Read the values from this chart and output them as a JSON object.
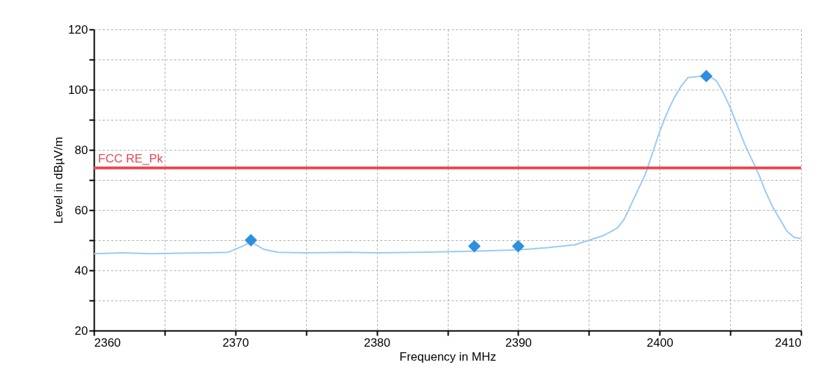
{
  "chart_data": {
    "type": "line",
    "xlabel": "Frequency in MHz",
    "ylabel": "Level in dBµV/m",
    "xlim": [
      2360,
      2410
    ],
    "xticks": [
      2360,
      {
        "value": 2365,
        "label": null
      },
      2370,
      {
        "value": 2375,
        "label": null
      },
      2380,
      {
        "value": 2385,
        "label": null
      },
      2390,
      {
        "value": 2395,
        "label": null
      },
      2400,
      {
        "value": 2405,
        "label": null
      },
      2410
    ],
    "ylim": [
      20,
      120
    ],
    "yticks": [
      20,
      {
        "value": 30,
        "label": null
      },
      40,
      {
        "value": 50,
        "label": null
      },
      60,
      {
        "value": 70,
        "label": null
      },
      80,
      {
        "value": 90,
        "label": null
      },
      100,
      {
        "value": 110,
        "label": null
      },
      120
    ],
    "grid": true,
    "line_style": "solid",
    "series": [
      {
        "type": "line",
        "color": "#99c9f5",
        "x": [
          2360,
          2362,
          2364,
          2366,
          2368,
          2369.5,
          2370.5,
          2371.1,
          2372,
          2373,
          2375,
          2378,
          2380,
          2383,
          2386,
          2388,
          2390,
          2392,
          2394,
          2395,
          2396,
          2397,
          2397.5,
          2398,
          2398.5,
          2399,
          2399.5,
          2400,
          2400.5,
          2401,
          2401.5,
          2402,
          2403,
          2403.5,
          2404,
          2404.5,
          2405,
          2405.5,
          2406,
          2406.5,
          2407,
          2407.5,
          2408,
          2408.5,
          2409,
          2409.5,
          2410
        ],
        "values": [
          45.5,
          45.8,
          45.5,
          45.7,
          45.8,
          46,
          48,
          49.5,
          47,
          46,
          45.8,
          46,
          45.8,
          46,
          46.3,
          46.5,
          46.8,
          47.5,
          48.5,
          50,
          51.5,
          54,
          57,
          62,
          67,
          72,
          79,
          86,
          92,
          97,
          101,
          104,
          104.5,
          104.5,
          103,
          99,
          94,
          88,
          82,
          77,
          72,
          66,
          61,
          57,
          53,
          51,
          50.5
        ]
      },
      {
        "type": "scatter",
        "marker": "diamond",
        "color": "#2f8fdc",
        "x": [
          2371.1,
          2386.9,
          2390,
          2403.3
        ],
        "values": [
          50,
          48,
          48,
          104.5
        ]
      }
    ],
    "ref_lines": [
      {
        "axis": "y",
        "value": 74,
        "label": "FCC RE_Pk",
        "color": "#e8474f",
        "line_style": "solid"
      }
    ]
  }
}
